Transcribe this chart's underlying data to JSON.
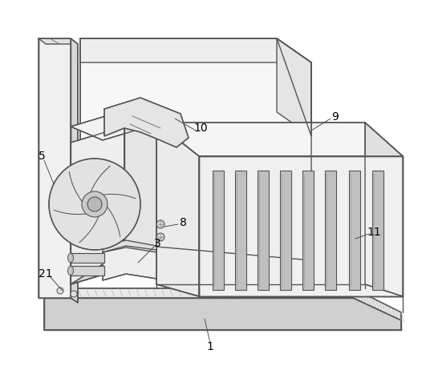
{
  "bg": "#ffffff",
  "lc": "#555555",
  "fc_top": "#f5f5f5",
  "fc_side": "#e8e8e8",
  "fc_front": "#f0f0f0",
  "fc_dark": "#d5d5d5",
  "lw": 1.0,
  "tlw": 0.55,
  "label_fs": 10,
  "fig_w": 5.26,
  "fig_h": 4.57,
  "dpi": 100
}
